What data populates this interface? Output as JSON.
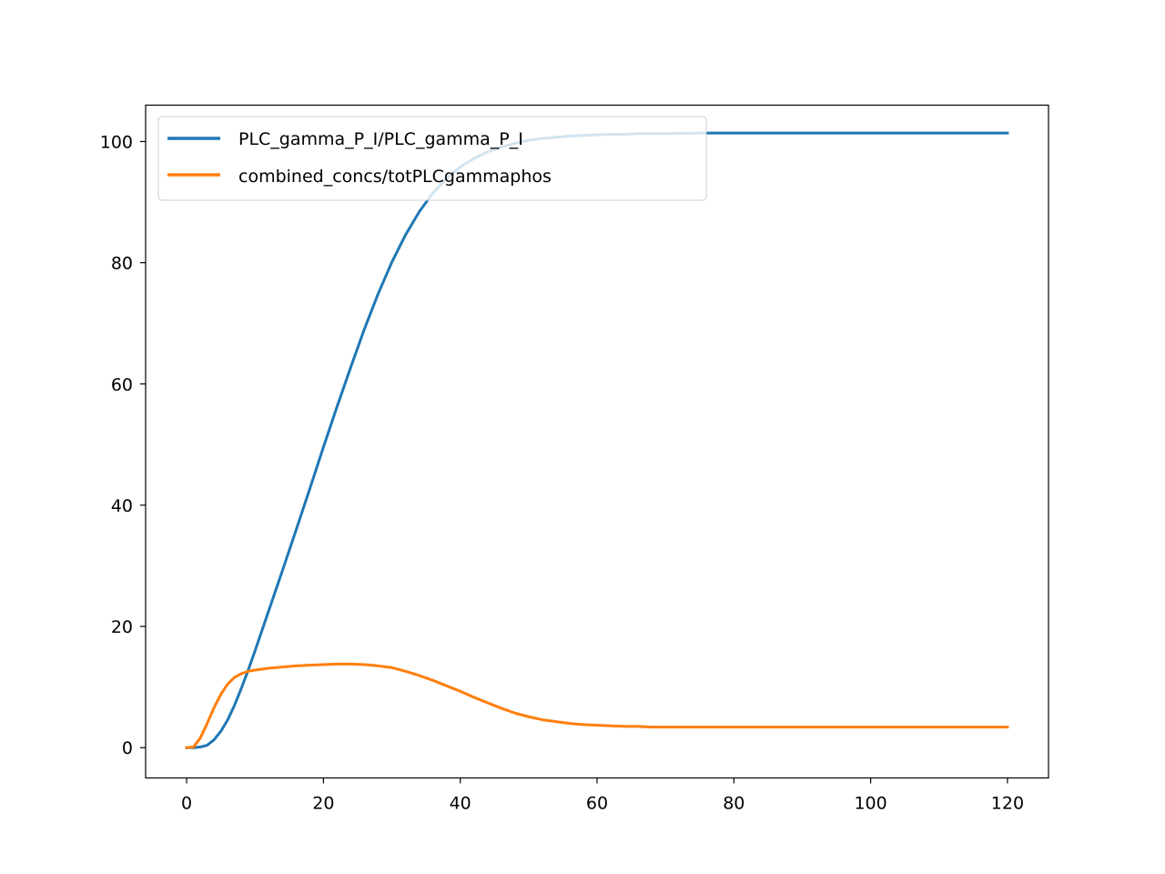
{
  "chart_data": {
    "type": "line",
    "title": "",
    "xlabel": "",
    "ylabel": "",
    "xlim": [
      -6,
      126
    ],
    "ylim": [
      -5,
      106
    ],
    "x_ticks": [
      0,
      20,
      40,
      60,
      80,
      100,
      120
    ],
    "x_tick_labels": [
      "0",
      "20",
      "40",
      "60",
      "80",
      "100",
      "120"
    ],
    "y_ticks": [
      0,
      20,
      40,
      60,
      80,
      100
    ],
    "y_tick_labels": [
      "0",
      "20",
      "40",
      "60",
      "80",
      "100"
    ],
    "grid": false,
    "legend_position": "top-left",
    "series": [
      {
        "name": "PLC_gamma_P_I/PLC_gamma_P_I",
        "color": "#1f77b4",
        "x": [
          0,
          1,
          2,
          3,
          4,
          5,
          6,
          7,
          8,
          9,
          10,
          12,
          14,
          16,
          18,
          20,
          22,
          24,
          26,
          28,
          30,
          32,
          34,
          36,
          38,
          40,
          42,
          44,
          46,
          48,
          50,
          52,
          54,
          56,
          58,
          60,
          62,
          64,
          66,
          68,
          70,
          75,
          80,
          90,
          100,
          110,
          120
        ],
        "y": [
          0,
          0,
          0.1,
          0.4,
          1.3,
          2.7,
          4.6,
          7.0,
          9.8,
          12.8,
          16.0,
          22.6,
          29.2,
          35.9,
          42.7,
          49.6,
          56.3,
          62.8,
          69.1,
          74.9,
          80.1,
          84.6,
          88.4,
          91.5,
          93.9,
          95.8,
          97.2,
          98.3,
          99.1,
          99.7,
          100.2,
          100.5,
          100.7,
          100.9,
          101.0,
          101.1,
          101.2,
          101.2,
          101.3,
          101.3,
          101.3,
          101.4,
          101.4,
          101.4,
          101.4,
          101.4,
          101.4
        ]
      },
      {
        "name": "combined_concs/totPLCgammaphos",
        "color": "#ff7f0e",
        "x": [
          0,
          1,
          2,
          3,
          4,
          5,
          6,
          7,
          8,
          9,
          10,
          12,
          14,
          16,
          18,
          20,
          22,
          24,
          26,
          28,
          30,
          32,
          34,
          36,
          38,
          40,
          42,
          44,
          46,
          48,
          50,
          52,
          54,
          56,
          58,
          60,
          62,
          64,
          66,
          68,
          70,
          75,
          80,
          90,
          100,
          110,
          120
        ],
        "y": [
          0,
          0.1,
          1.6,
          4.0,
          6.6,
          8.8,
          10.5,
          11.6,
          12.2,
          12.6,
          12.8,
          13.1,
          13.3,
          13.5,
          13.6,
          13.7,
          13.8,
          13.8,
          13.7,
          13.5,
          13.2,
          12.6,
          11.9,
          11.1,
          10.2,
          9.3,
          8.3,
          7.4,
          6.5,
          5.7,
          5.1,
          4.6,
          4.3,
          4.0,
          3.8,
          3.7,
          3.6,
          3.5,
          3.5,
          3.4,
          3.4,
          3.4,
          3.4,
          3.4,
          3.4,
          3.4,
          3.4
        ]
      }
    ]
  }
}
